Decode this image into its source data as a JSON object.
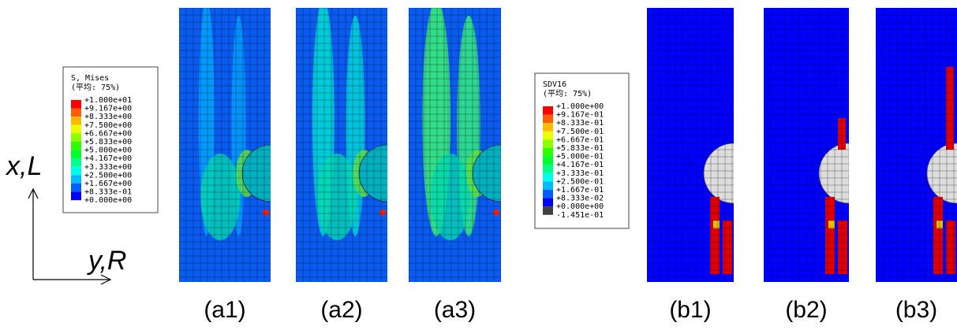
{
  "axes": {
    "vertical": "x,L",
    "horizontal": "y,R"
  },
  "legend_a": {
    "title": "S, Mises",
    "subtitle": "(平均: 75%)",
    "labels": [
      "+1.000e+01",
      "+9.167e+00",
      "+8.333e+00",
      "+7.500e+00",
      "+6.667e+00",
      "+5.833e+00",
      "+5.000e+00",
      "+4.167e+00",
      "+3.333e+00",
      "+2.500e+00",
      "+1.667e+00",
      "+8.333e-01",
      "+0.000e+00"
    ],
    "colors": [
      "#ff0000",
      "#ff5d00",
      "#ffb900",
      "#e8ff00",
      "#8bff00",
      "#2eff00",
      "#00ff2e",
      "#00ff8b",
      "#00ffe8",
      "#00b9ff",
      "#005dff",
      "#0000ff"
    ]
  },
  "legend_b": {
    "title": "SDV16",
    "subtitle": "(平均: 75%)",
    "labels": [
      "+1.000e+00",
      "+9.167e-01",
      "+8.333e-01",
      "+7.500e-01",
      "+6.667e-01",
      "+5.833e-01",
      "+5.000e-01",
      "+4.167e-01",
      "+3.333e-01",
      "+2.500e-01",
      "+1.667e-01",
      "+8.333e-02",
      "+0.000e+00",
      "-1.451e-01"
    ],
    "colors": [
      "#ff0000",
      "#ff5d00",
      "#ffb900",
      "#e8ff00",
      "#8bff00",
      "#2eff00",
      "#00ff2e",
      "#00ff8b",
      "#00ffe8",
      "#00b9ff",
      "#005dff",
      "#0000ff",
      "#404040"
    ]
  },
  "panels": [
    "(a1)",
    "(a2)",
    "(a3)",
    "(b1)",
    "(b2)",
    "(b3)"
  ]
}
